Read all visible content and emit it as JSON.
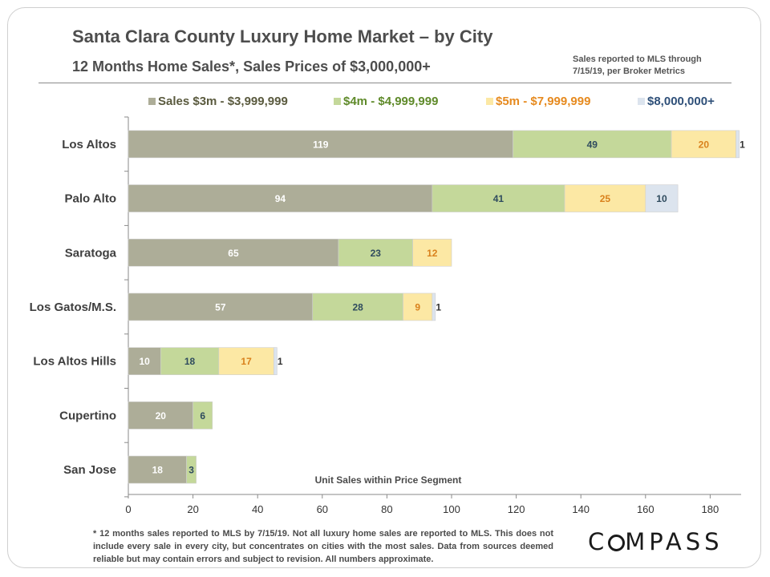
{
  "header": {
    "title": "Santa Clara County Luxury Home Market – by City",
    "subtitle": "12 Months Home Sales*, Sales Prices of $3,000,000+",
    "note_line1": "Sales reported to MLS through",
    "note_line2": "7/15/19, per Broker Metrics"
  },
  "footer": {
    "disclaimer": "* 12 months sales reported to MLS by 7/15/19. Not all luxury home sales are reported to MLS. This does not include every sale in every city, but concentrates on cities with the most sales. Data from sources deemed reliable but may contain errors and subject to revision. All numbers approximate."
  },
  "brand": {
    "logo_before": "C",
    "logo_after": "MPASS",
    "logo_text": "COMPASS"
  },
  "chart_data": {
    "type": "bar",
    "orientation": "horizontal",
    "stacked": true,
    "categories": [
      "Los Altos",
      "Palo Alto",
      "Saratoga",
      "Los Gatos/M.S.",
      "Los Altos Hills",
      "Cupertino",
      "San Jose"
    ],
    "series": [
      {
        "name": "Sales $3m - $3,999,999",
        "color": "#adad98",
        "label_color": "#ffffff",
        "legend_text_color": "#5a5a3e",
        "values": [
          119,
          94,
          65,
          57,
          10,
          20,
          18
        ]
      },
      {
        "name": "$4m - $4,999,999",
        "color": "#c4d89a",
        "label_color": "#2f4b5e",
        "legend_text_color": "#5f8a2a",
        "values": [
          49,
          41,
          23,
          28,
          18,
          6,
          3
        ]
      },
      {
        "name": "$5m - $7,999,999",
        "color": "#fce8a4",
        "label_color": "#d9811c",
        "legend_text_color": "#e68a1f",
        "values": [
          20,
          25,
          12,
          9,
          17,
          0,
          0
        ]
      },
      {
        "name": "$8,000,000+",
        "color": "#dce4ee",
        "label_color": "#2f4b5e",
        "legend_text_color": "#2f5079",
        "values": [
          1,
          10,
          0,
          1,
          1,
          0,
          0
        ]
      }
    ],
    "xlabel": "Unit Sales within Price Segment",
    "xlim": [
      0,
      190
    ],
    "xticks": [
      0,
      20,
      40,
      60,
      80,
      100,
      120,
      140,
      160,
      180
    ],
    "grid": false,
    "legend_position": "top"
  }
}
